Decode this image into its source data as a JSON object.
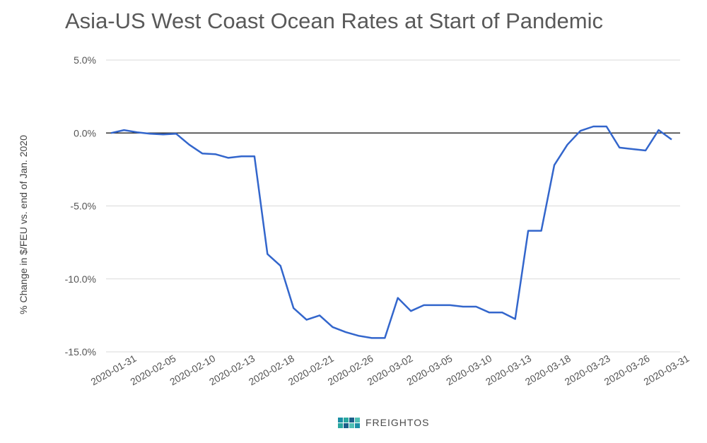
{
  "brand": {
    "name": "FREIGHTOS",
    "colors": [
      "#1b8fa6",
      "#2aa8a0",
      "#1c5f8a",
      "#4fc0b5"
    ]
  },
  "chart_data": {
    "type": "line",
    "title": "Asia-US West Coast Ocean Rates at Start of Pandemic",
    "xlabel": "",
    "ylabel": "% Change in $/FEU vs. end of Jan. 2020",
    "ylim": [
      -15,
      5
    ],
    "yticks": [
      5,
      0,
      -5,
      -10,
      -15
    ],
    "ytick_labels": [
      "5.0%",
      "0.0%",
      "-5.0%",
      "-10.0%",
      "-15.0%"
    ],
    "xtick_labels": [
      "2020-01-31",
      "2020-02-05",
      "2020-02-10",
      "2020-02-13",
      "2020-02-18",
      "2020-02-21",
      "2020-02-26",
      "2020-03-02",
      "2020-03-05",
      "2020-03-10",
      "2020-03-13",
      "2020-03-18",
      "2020-03-23",
      "2020-03-26",
      "2020-03-31"
    ],
    "grid": true,
    "line_color": "#3366cc",
    "series": [
      {
        "values": [
          0.0,
          0.2,
          0.05,
          -0.05,
          -0.1,
          -0.05,
          -0.8,
          -1.4,
          -1.45,
          -1.7,
          -1.6,
          -1.6,
          -8.3,
          -9.1,
          -12.0,
          -12.8,
          -12.5,
          -13.3,
          -13.65,
          -13.9,
          -14.05,
          -14.05,
          -11.3,
          -12.2,
          -11.8,
          -11.8,
          -11.8,
          -11.9,
          -11.9,
          -12.3,
          -12.3,
          -12.75,
          -6.7,
          -6.7,
          -2.2,
          -0.8,
          0.15,
          0.45,
          0.45,
          -1.0,
          -1.1,
          -1.2,
          0.2,
          -0.45
        ]
      }
    ]
  }
}
